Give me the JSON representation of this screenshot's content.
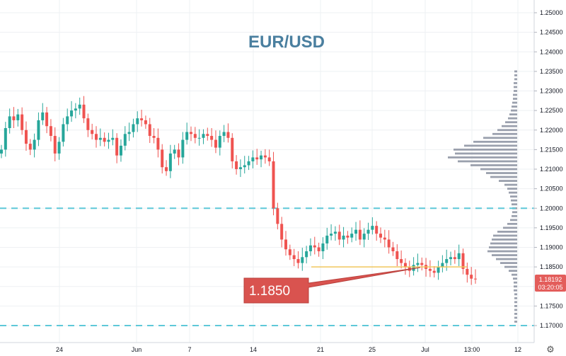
{
  "chart_data": {
    "type": "candlestick",
    "title": "EUR/USD",
    "ylim": [
      1.1672,
      1.2527
    ],
    "y_ticks": [
      "1.25000",
      "1.24500",
      "1.24000",
      "1.23500",
      "1.23000",
      "1.22500",
      "1.22000",
      "1.21500",
      "1.21000",
      "1.20500",
      "1.20000",
      "1.19500",
      "1.19000",
      "1.18500",
      "1.17500",
      "1.17000"
    ],
    "x_ticks": [
      "24",
      "Jun",
      "7",
      "14",
      "21",
      "25",
      "Jul",
      "13:00",
      "12"
    ],
    "horizontal_levels": [
      1.2,
      1.17
    ],
    "annotation": {
      "text": "1.1850",
      "level": 1.185
    },
    "last_price": {
      "value": "1.18192",
      "countdown": "03:20:05"
    },
    "grid": true,
    "candle_closes": [
      1.215,
      1.2205,
      1.2235,
      1.2225,
      1.224,
      1.22,
      1.2165,
      1.215,
      1.2175,
      1.2225,
      1.2245,
      1.221,
      1.2185,
      1.214,
      1.217,
      1.2215,
      1.2235,
      1.225,
      1.2255,
      1.2265,
      1.223,
      1.22,
      1.219,
      1.2175,
      1.218,
      1.217,
      1.2175,
      1.218,
      1.2135,
      1.216,
      1.219,
      1.2195,
      1.2215,
      1.223,
      1.2225,
      1.2215,
      1.2185,
      1.218,
      1.215,
      1.2105,
      1.2095,
      1.214,
      1.215,
      1.213,
      1.2175,
      1.2195,
      1.219,
      1.218,
      1.218,
      1.219,
      1.2185,
      1.2175,
      1.2155,
      1.2185,
      1.2195,
      1.218,
      1.212,
      1.21,
      1.2105,
      1.211,
      1.212,
      1.213,
      1.2125,
      1.2135,
      1.213,
      1.212,
      1.2,
      1.196,
      1.192,
      1.1895,
      1.188,
      1.187,
      1.186,
      1.1875,
      1.189,
      1.1905,
      1.19,
      1.189,
      1.191,
      1.193,
      1.1935,
      1.194,
      1.192,
      1.193,
      1.1925,
      1.1935,
      1.1945,
      1.192,
      1.1935,
      1.1945,
      1.1955,
      1.1935,
      1.1925,
      1.192,
      1.19,
      1.189,
      1.187,
      1.186,
      1.185,
      1.184,
      1.1855,
      1.186,
      1.1855,
      1.1845,
      1.184,
      1.1835,
      1.185,
      1.186,
      1.187,
      1.1875,
      1.187,
      1.1885,
      1.1845,
      1.183,
      1.182,
      1.1819
    ],
    "volume_profile": [
      {
        "price": 1.235,
        "len": 4
      },
      {
        "price": 1.234,
        "len": 4
      },
      {
        "price": 1.233,
        "len": 4
      },
      {
        "price": 1.232,
        "len": 5
      },
      {
        "price": 1.231,
        "len": 5
      },
      {
        "price": 1.23,
        "len": 5
      },
      {
        "price": 1.229,
        "len": 6
      },
      {
        "price": 1.228,
        "len": 6
      },
      {
        "price": 1.227,
        "len": 7
      },
      {
        "price": 1.226,
        "len": 8
      },
      {
        "price": 1.225,
        "len": 9
      },
      {
        "price": 1.224,
        "len": 11
      },
      {
        "price": 1.223,
        "len": 13
      },
      {
        "price": 1.222,
        "len": 17
      },
      {
        "price": 1.221,
        "len": 22
      },
      {
        "price": 1.22,
        "len": 28
      },
      {
        "price": 1.219,
        "len": 35
      },
      {
        "price": 1.218,
        "len": 48
      },
      {
        "price": 1.217,
        "len": 62
      },
      {
        "price": 1.216,
        "len": 75
      },
      {
        "price": 1.215,
        "len": 90
      },
      {
        "price": 1.214,
        "len": 88
      },
      {
        "price": 1.213,
        "len": 98
      },
      {
        "price": 1.212,
        "len": 84
      },
      {
        "price": 1.211,
        "len": 66
      },
      {
        "price": 1.21,
        "len": 52
      },
      {
        "price": 1.209,
        "len": 44
      },
      {
        "price": 1.208,
        "len": 38
      },
      {
        "price": 1.207,
        "len": 26
      },
      {
        "price": 1.206,
        "len": 18
      },
      {
        "price": 1.205,
        "len": 14
      },
      {
        "price": 1.204,
        "len": 12
      },
      {
        "price": 1.203,
        "len": 10
      },
      {
        "price": 1.202,
        "len": 9
      },
      {
        "price": 1.201,
        "len": 8
      },
      {
        "price": 1.2,
        "len": 7
      },
      {
        "price": 1.199,
        "len": 7
      },
      {
        "price": 1.198,
        "len": 8
      },
      {
        "price": 1.197,
        "len": 10
      },
      {
        "price": 1.196,
        "len": 14
      },
      {
        "price": 1.195,
        "len": 20
      },
      {
        "price": 1.194,
        "len": 28
      },
      {
        "price": 1.193,
        "len": 34
      },
      {
        "price": 1.192,
        "len": 36
      },
      {
        "price": 1.191,
        "len": 38
      },
      {
        "price": 1.19,
        "len": 40
      },
      {
        "price": 1.189,
        "len": 42
      },
      {
        "price": 1.188,
        "len": 36
      },
      {
        "price": 1.187,
        "len": 30
      },
      {
        "price": 1.186,
        "len": 24
      },
      {
        "price": 1.185,
        "len": 18
      },
      {
        "price": 1.184,
        "len": 12
      },
      {
        "price": 1.183,
        "len": 8
      },
      {
        "price": 1.182,
        "len": 6
      },
      {
        "price": 1.181,
        "len": 5
      },
      {
        "price": 1.18,
        "len": 5
      },
      {
        "price": 1.179,
        "len": 5
      },
      {
        "price": 1.178,
        "len": 4
      },
      {
        "price": 1.177,
        "len": 4
      },
      {
        "price": 1.176,
        "len": 4
      },
      {
        "price": 1.175,
        "len": 4
      },
      {
        "price": 1.174,
        "len": 4
      },
      {
        "price": 1.173,
        "len": 4
      },
      {
        "price": 1.172,
        "len": 4
      },
      {
        "price": 1.171,
        "len": 4
      }
    ]
  },
  "colors": {
    "up": "#26a69a",
    "down": "#ef5350",
    "grid": "#eef0f3",
    "dashed_level": "#5ec8d8",
    "volume": "#9aa0ad",
    "callout_fill": "#d9534f",
    "title": "#4a7f9f",
    "price_tag": "#e35d5b"
  },
  "icons": {
    "settings": "gear-icon"
  }
}
